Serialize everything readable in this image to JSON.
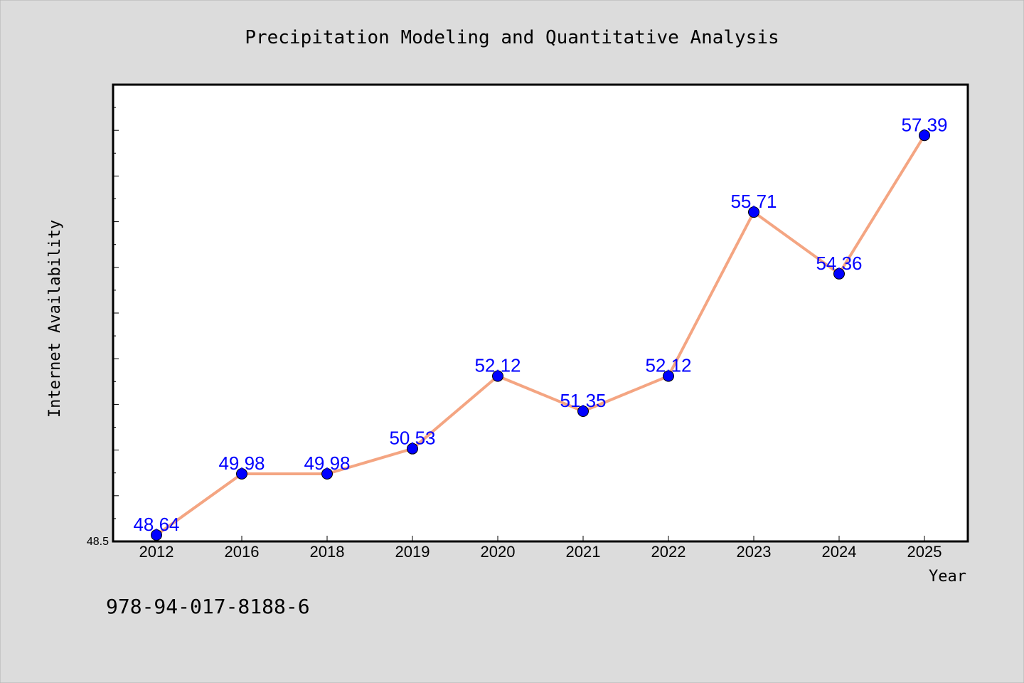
{
  "chart_data": {
    "type": "line",
    "title": "Precipitation Modeling and Quantitative Analysis",
    "xlabel": "Year",
    "ylabel": "Internet Availability",
    "categories": [
      "2012",
      "2016",
      "2018",
      "2019",
      "2020",
      "2021",
      "2022",
      "2023",
      "2024",
      "2025"
    ],
    "values": [
      48.64,
      49.98,
      49.98,
      50.53,
      52.12,
      51.35,
      52.12,
      55.71,
      54.36,
      57.39
    ],
    "data_labels": [
      "48.64",
      "49.98",
      "49.98",
      "50.53",
      "52.12",
      "51.35",
      "52.12",
      "55.71",
      "54.36",
      "57.39"
    ],
    "ylim": [
      48.5,
      58.5
    ],
    "y_tick_labels": [
      "48.5"
    ],
    "grid": false,
    "legend": "none",
    "colors": {
      "line": "#f4a582",
      "marker": "#0000ff",
      "data_label": "#0000ff",
      "background": "#dcdcdc",
      "plot_background": "#ffffff"
    }
  },
  "footer": {
    "isbn": "978-94-017-8188-6"
  }
}
